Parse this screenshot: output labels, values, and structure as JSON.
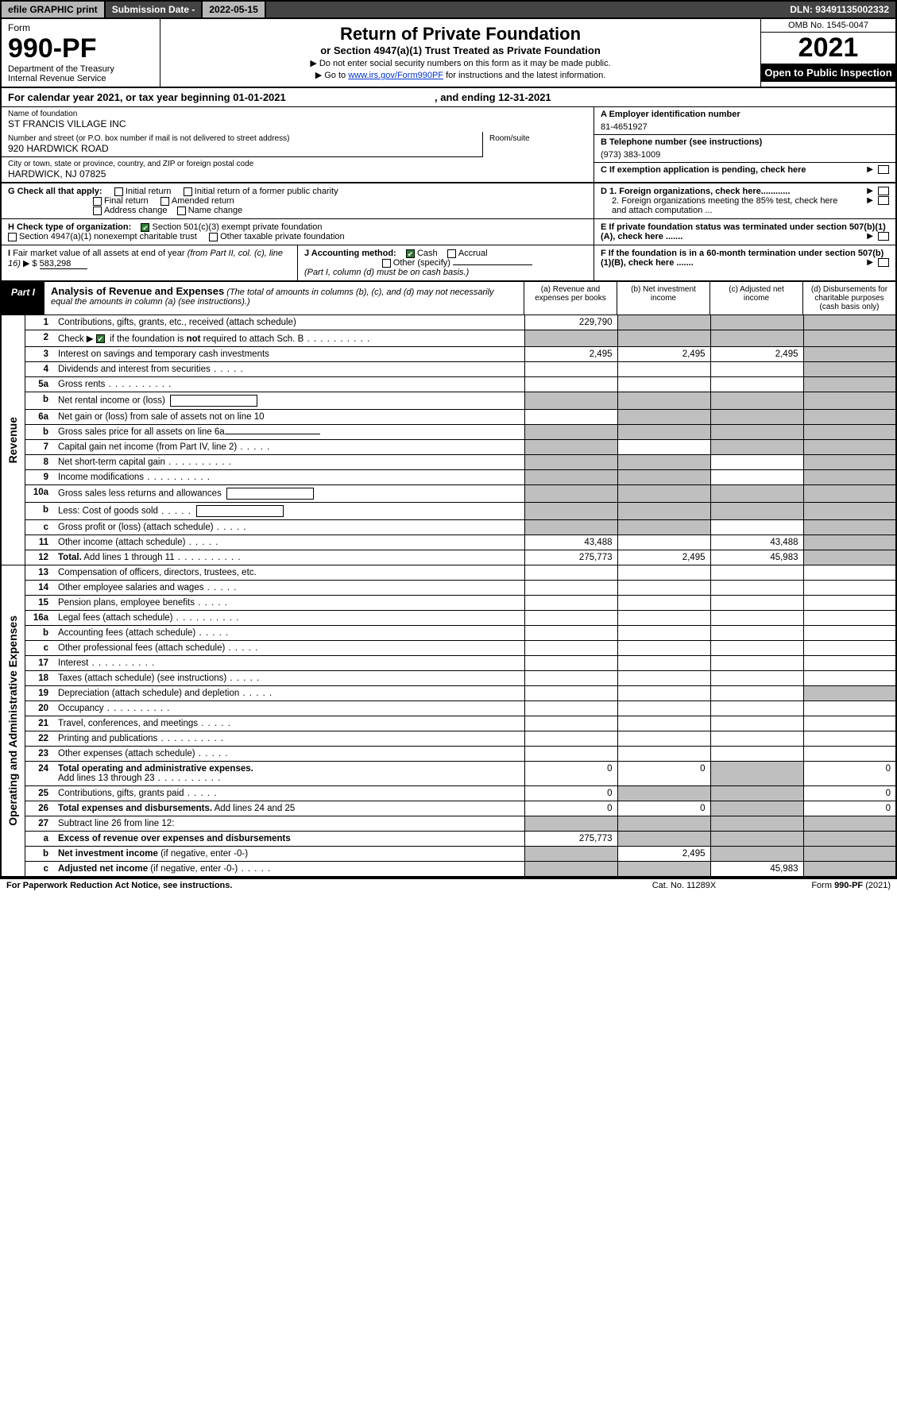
{
  "topbar": {
    "efile": "efile GRAPHIC print",
    "sub_label": "Submission Date - ",
    "sub_date": "2022-05-15",
    "dln": "DLN: 93491135002332"
  },
  "header": {
    "form_label": "Form",
    "form_no": "990-PF",
    "dept1": "Department of the Treasury",
    "dept2": "Internal Revenue Service",
    "title": "Return of Private Foundation",
    "subtitle": "or Section 4947(a)(1) Trust Treated as Private Foundation",
    "instr1": "▶ Do not enter social security numbers on this form as it may be made public.",
    "instr2_pre": "▶ Go to ",
    "instr2_link": "www.irs.gov/Form990PF",
    "instr2_post": " for instructions and the latest information.",
    "omb": "OMB No. 1545-0047",
    "year": "2021",
    "open": "Open to Public Inspection"
  },
  "calendar": {
    "pre": "For calendar year 2021, or tax year beginning ",
    "begin": "01-01-2021",
    "mid": ", and ending ",
    "end": "12-31-2021"
  },
  "foundation": {
    "name_label": "Name of foundation",
    "name": "ST FRANCIS VILLAGE INC",
    "addr_label": "Number and street (or P.O. box number if mail is not delivered to street address)",
    "addr": "920 HARDWICK ROAD",
    "room_label": "Room/suite",
    "city_label": "City or town, state or province, country, and ZIP or foreign postal code",
    "city": "HARDWICK, NJ  07825",
    "a_label": "A Employer identification number",
    "a_val": "81-4651927",
    "b_label": "B Telephone number (see instructions)",
    "b_val": "(973) 383-1009",
    "c_label": "C If exemption application is pending, check here",
    "d1_label": "D 1. Foreign organizations, check here............",
    "d2_label": "2. Foreign organizations meeting the 85% test, check here and attach computation ...",
    "e_label": "E If private foundation status was terminated under section 507(b)(1)(A), check here .......",
    "f_label": "F If the foundation is in a 60-month termination under section 507(b)(1)(B), check here ......."
  },
  "g": {
    "label": "G Check all that apply:",
    "opts": [
      "Initial return",
      "Initial return of a former public charity",
      "Final return",
      "Amended return",
      "Address change",
      "Name change"
    ]
  },
  "h": {
    "label": "H Check type of organization:",
    "opt1": "Section 501(c)(3) exempt private foundation",
    "opt2": "Section 4947(a)(1) nonexempt charitable trust",
    "opt3": "Other taxable private foundation"
  },
  "i": {
    "label": "I Fair market value of all assets at end of year (from Part II, col. (c), line 16) ▶ $",
    "val": "583,298"
  },
  "j": {
    "label": "J Accounting method:",
    "opts": [
      "Cash",
      "Accrual",
      "Other (specify)"
    ],
    "note": "(Part I, column (d) must be on cash basis.)"
  },
  "part1": {
    "tag": "Part I",
    "title": "Analysis of Revenue and Expenses",
    "note": "(The total of amounts in columns (b), (c), and (d) may not necessarily equal the amounts in column (a) (see instructions).)",
    "col_a": "(a) Revenue and expenses per books",
    "col_b": "(b) Net investment income",
    "col_c": "(c) Adjusted net income",
    "col_d": "(d) Disbursements for charitable purposes (cash basis only)"
  },
  "side": {
    "revenue": "Revenue",
    "expenses": "Operating and Administrative Expenses"
  },
  "rows": [
    {
      "n": "1",
      "d": "shade",
      "a": "229,790",
      "b": "shade",
      "c": "shade"
    },
    {
      "n": "2",
      "d": "shade",
      "a": "shade",
      "b": "shade",
      "c": "shade",
      "dots": true
    },
    {
      "n": "3",
      "d": "shade",
      "a": "2,495",
      "b": "2,495",
      "c": "2,495"
    },
    {
      "n": "4",
      "d": "shade",
      "a": "",
      "b": "",
      "c": "",
      "dots": true
    },
    {
      "n": "5a",
      "d": "shade",
      "a": "",
      "b": "",
      "c": "",
      "dots": true
    },
    {
      "n": "b",
      "d": "shade",
      "a": "shade",
      "b": "shade",
      "c": "shade",
      "box": true
    },
    {
      "n": "6a",
      "d": "shade",
      "a": "",
      "b": "shade",
      "c": "shade"
    },
    {
      "n": "b",
      "d": "shade",
      "a": "shade",
      "b": "shade",
      "c": "shade",
      "box": true,
      "under": true
    },
    {
      "n": "7",
      "d": "shade",
      "a": "shade",
      "b": "",
      "c": "shade",
      "dots": true
    },
    {
      "n": "8",
      "d": "shade",
      "a": "shade",
      "b": "shade",
      "c": "",
      "dots": true
    },
    {
      "n": "9",
      "d": "shade",
      "a": "shade",
      "b": "shade",
      "c": "",
      "dots": true
    },
    {
      "n": "10a",
      "d": "shade",
      "a": "shade",
      "b": "shade",
      "c": "shade",
      "box": true
    },
    {
      "n": "b",
      "d": "shade",
      "a": "shade",
      "b": "shade",
      "c": "shade",
      "box": true,
      "dots": true
    },
    {
      "n": "c",
      "d": "shade",
      "a": "shade",
      "b": "shade",
      "c": "",
      "dots": true
    },
    {
      "n": "11",
      "d": "shade",
      "a": "43,488",
      "b": "",
      "c": "43,488",
      "dots": true
    },
    {
      "n": "12",
      "d": "shade",
      "a": "275,773",
      "b": "2,495",
      "c": "45,983",
      "bold": true,
      "dots": true
    }
  ],
  "exp_rows": [
    {
      "n": "13",
      "d": "",
      "a": "",
      "b": "",
      "c": ""
    },
    {
      "n": "14",
      "d": "",
      "a": "",
      "b": "",
      "c": "",
      "dots": true
    },
    {
      "n": "15",
      "d": "",
      "a": "",
      "b": "",
      "c": "",
      "dots": true
    },
    {
      "n": "16a",
      "d": "",
      "a": "",
      "b": "",
      "c": "",
      "dots": true
    },
    {
      "n": "b",
      "d": "",
      "a": "",
      "b": "",
      "c": "",
      "dots": true
    },
    {
      "n": "c",
      "d": "",
      "a": "",
      "b": "",
      "c": "",
      "dots": true
    },
    {
      "n": "17",
      "d": "",
      "a": "",
      "b": "",
      "c": "",
      "dots": true
    },
    {
      "n": "18",
      "d": "",
      "a": "",
      "b": "",
      "c": "",
      "dots": true
    },
    {
      "n": "19",
      "d": "shade",
      "a": "",
      "b": "",
      "c": "",
      "dots": true
    },
    {
      "n": "20",
      "d": "",
      "a": "",
      "b": "",
      "c": "",
      "dots": true
    },
    {
      "n": "21",
      "d": "",
      "a": "",
      "b": "",
      "c": "",
      "dots": true
    },
    {
      "n": "22",
      "d": "",
      "a": "",
      "b": "",
      "c": "",
      "dots": true
    },
    {
      "n": "23",
      "d": "",
      "a": "",
      "b": "",
      "c": "",
      "dots": true
    },
    {
      "n": "24",
      "d": "0",
      "a": "0",
      "b": "0",
      "c": "shade",
      "bold": true,
      "dots": true
    },
    {
      "n": "25",
      "d": "0",
      "a": "0",
      "b": "shade",
      "c": "shade",
      "dots": true
    },
    {
      "n": "26",
      "d": "0",
      "a": "0",
      "b": "0",
      "c": "shade",
      "bold": true
    },
    {
      "n": "27",
      "d": "shade",
      "a": "shade",
      "b": "shade",
      "c": "shade"
    },
    {
      "n": "a",
      "d": "shade",
      "a": "275,773",
      "b": "shade",
      "c": "shade",
      "bold": true
    },
    {
      "n": "b",
      "d": "shade",
      "a": "shade",
      "b": "2,495",
      "c": "shade",
      "bold": true
    },
    {
      "n": "c",
      "d": "shade",
      "a": "shade",
      "b": "shade",
      "c": "45,983",
      "bold": true,
      "dots": true
    }
  ],
  "footer": {
    "left": "For Paperwork Reduction Act Notice, see instructions.",
    "mid": "Cat. No. 11289X",
    "right": "Form 990-PF (2021)"
  }
}
